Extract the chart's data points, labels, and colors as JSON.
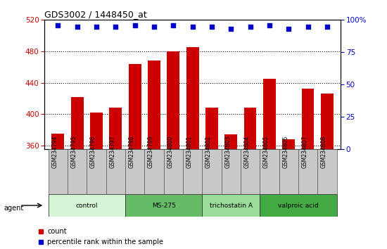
{
  "title": "GDS3002 / 1448450_at",
  "samples": [
    "GSM234794",
    "GSM234795",
    "GSM234796",
    "GSM234797",
    "GSM234798",
    "GSM234799",
    "GSM234800",
    "GSM234801",
    "GSM234802",
    "GSM234803",
    "GSM234804",
    "GSM234805",
    "GSM234806",
    "GSM234807",
    "GSM234808"
  ],
  "counts": [
    375,
    422,
    402,
    408,
    464,
    468,
    480,
    485,
    408,
    374,
    408,
    445,
    368,
    432,
    426
  ],
  "percentiles": [
    96,
    95,
    95,
    95,
    96,
    95,
    96,
    95,
    95,
    93,
    95,
    96,
    93,
    95,
    95
  ],
  "groups": [
    {
      "label": "control",
      "start": 0,
      "end": 4,
      "color": "#d6f5d6"
    },
    {
      "label": "MS-275",
      "start": 4,
      "end": 8,
      "color": "#66bb66"
    },
    {
      "label": "trichostatin A",
      "start": 8,
      "end": 11,
      "color": "#99dd99"
    },
    {
      "label": "valproic acid",
      "start": 11,
      "end": 15,
      "color": "#44aa44"
    }
  ],
  "ylim_left": [
    355,
    520
  ],
  "ylim_right": [
    0,
    100
  ],
  "yticks_left": [
    360,
    400,
    440,
    480,
    520
  ],
  "yticks_right": [
    0,
    25,
    50,
    75,
    100
  ],
  "bar_color": "#cc0000",
  "dot_color": "#0000cc",
  "background_color": "#ffffff",
  "tick_label_color_left": "#cc0000",
  "tick_label_color_right": "#0000cc",
  "bar_width": 0.65,
  "agent_label": "agent",
  "dot_pct_value": 96,
  "box_color": "#c8c8c8"
}
